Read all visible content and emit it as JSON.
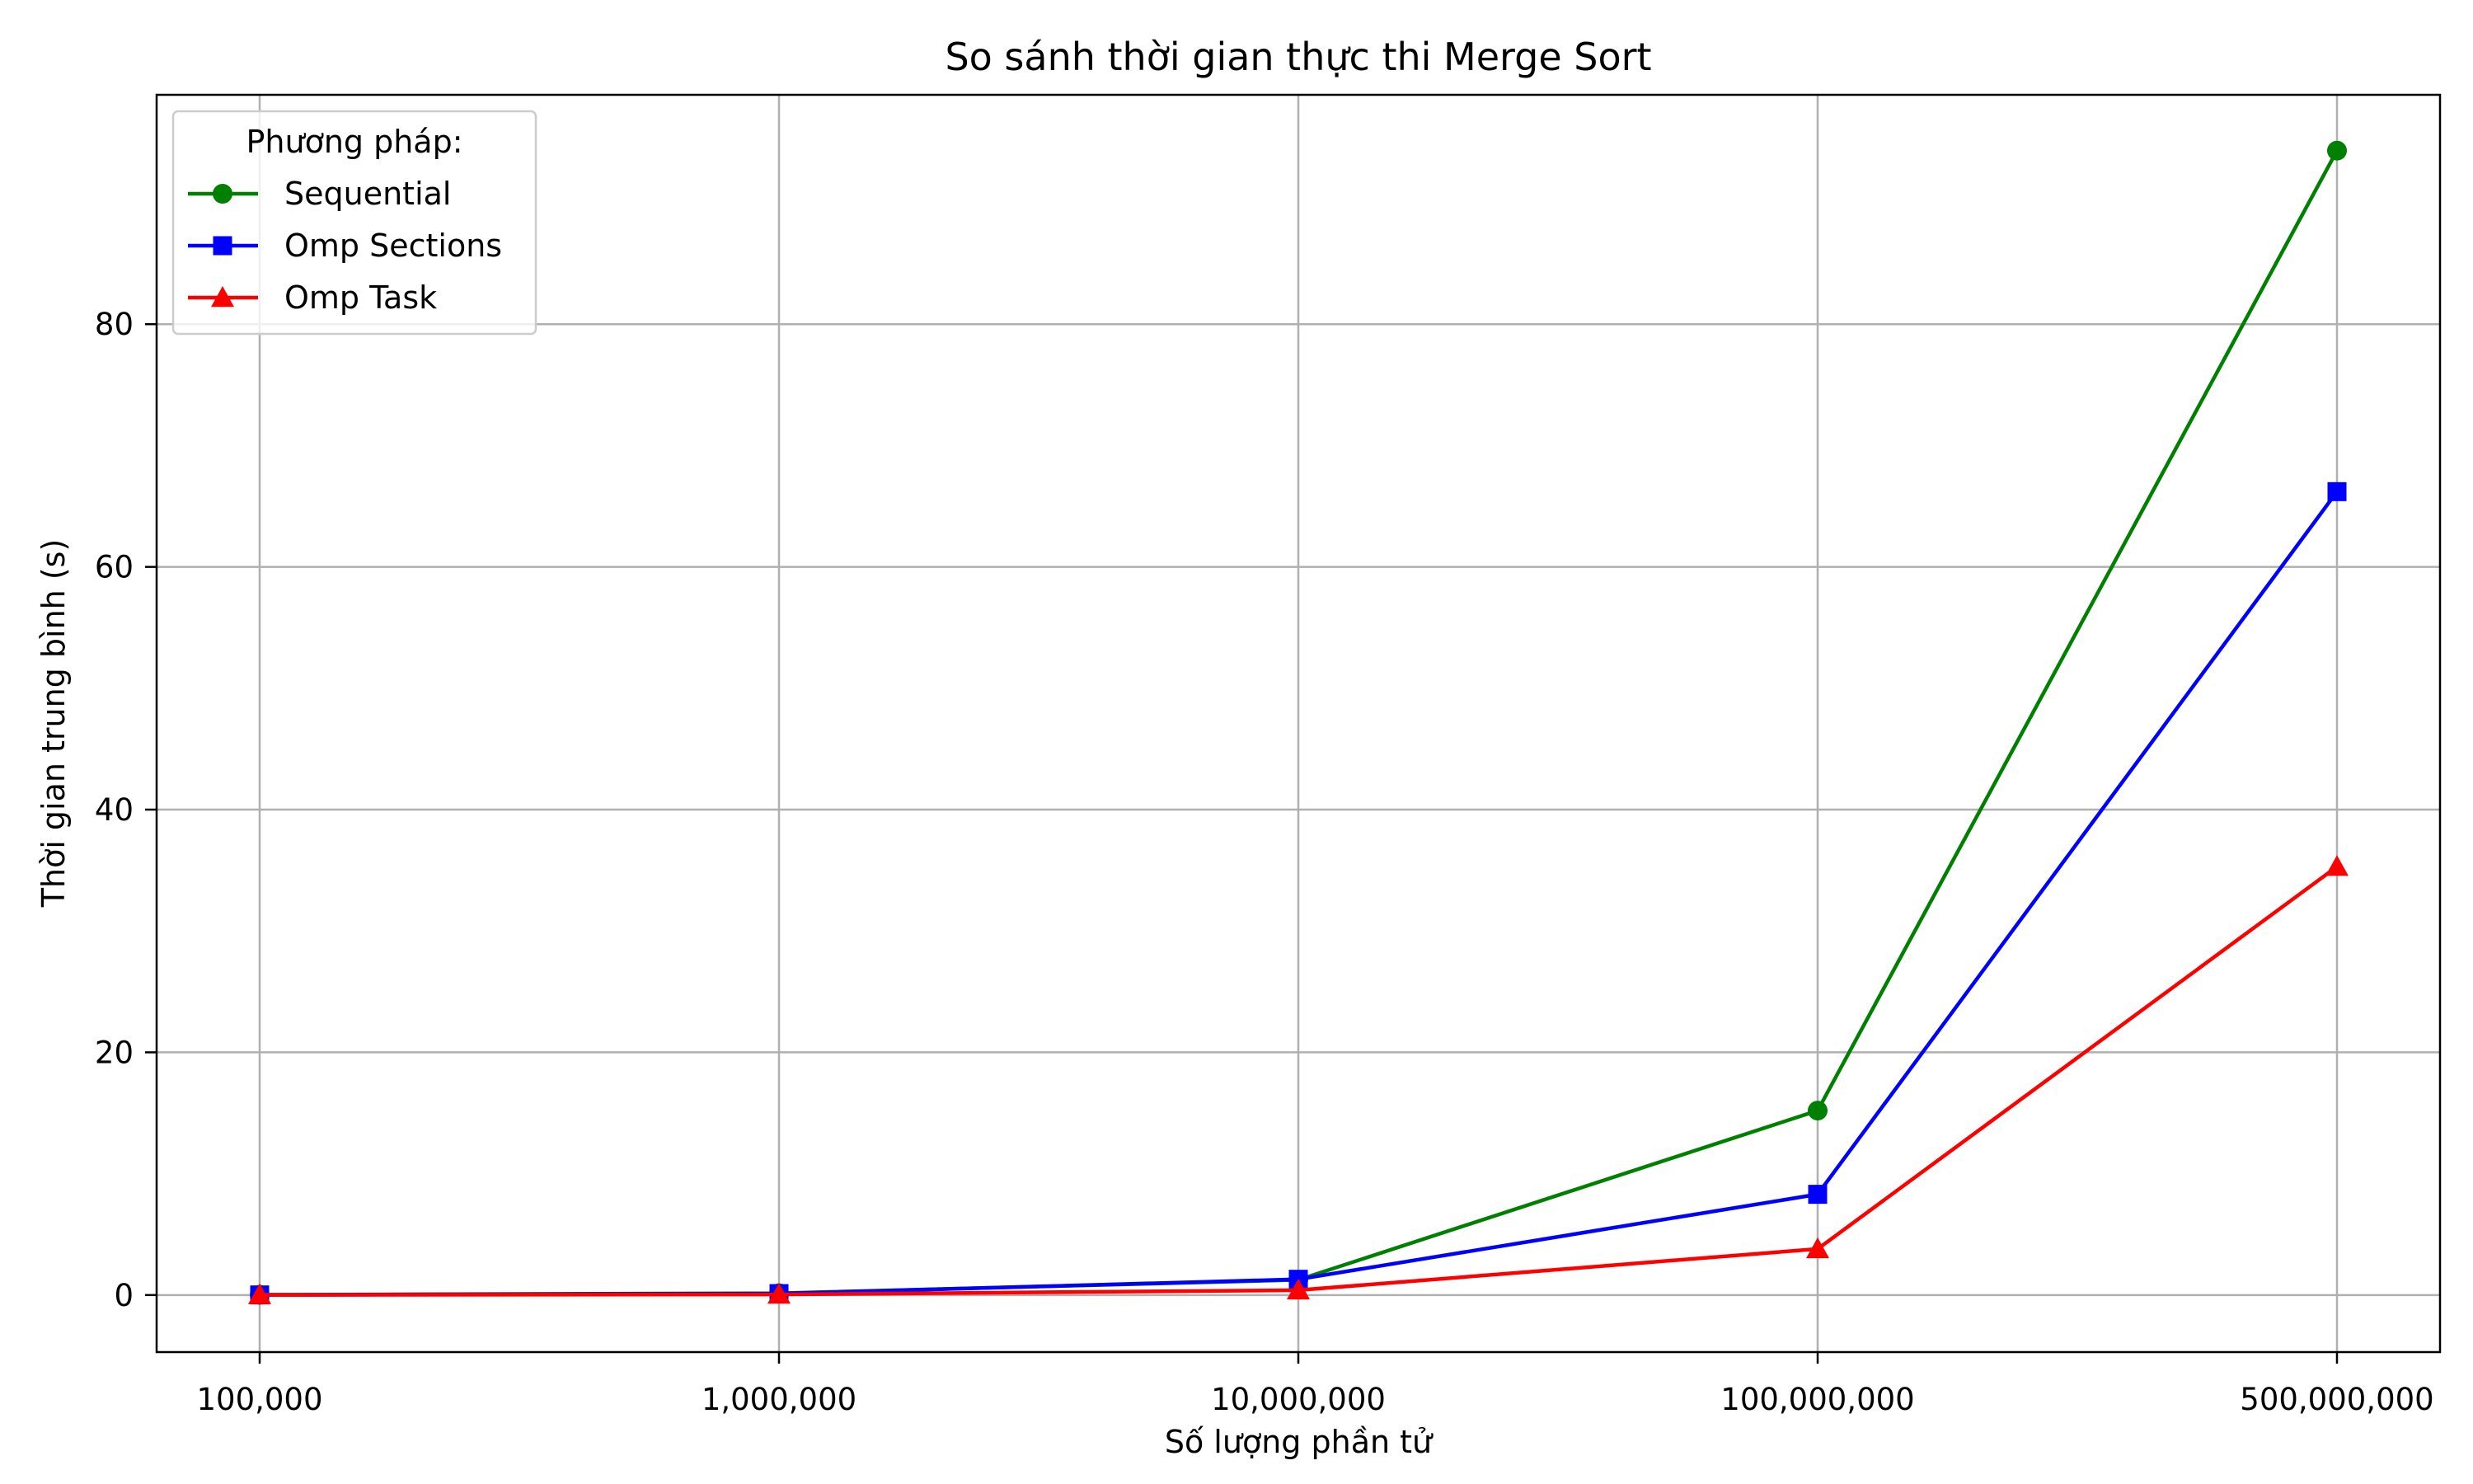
{
  "chart_data": {
    "type": "line",
    "title": "So sánh thời gian thực thi Merge Sort",
    "xlabel": "Số lượng phần tử",
    "ylabel": "Thời gian trung bình (s)",
    "categories": [
      "100,000",
      "1,000,000",
      "10,000,000",
      "100,000,000",
      "500,000,000"
    ],
    "yticks": [
      0,
      20,
      40,
      60,
      80
    ],
    "ylim": [
      -4.7,
      98.9
    ],
    "grid": true,
    "legend": {
      "title": "Phương pháp:",
      "position": "top-left"
    },
    "series": [
      {
        "name": "Sequential",
        "color": "#008000",
        "marker": "circle",
        "values": [
          0.02,
          0.15,
          1.25,
          15.2,
          94.3
        ]
      },
      {
        "name": "Omp Sections",
        "color": "#0000ff",
        "marker": "square",
        "values": [
          0.01,
          0.12,
          1.3,
          8.3,
          66.2
        ]
      },
      {
        "name": "Omp Task",
        "color": "#ff0000",
        "marker": "triangle",
        "values": [
          0.01,
          0.05,
          0.4,
          3.8,
          35.3
        ]
      }
    ]
  }
}
